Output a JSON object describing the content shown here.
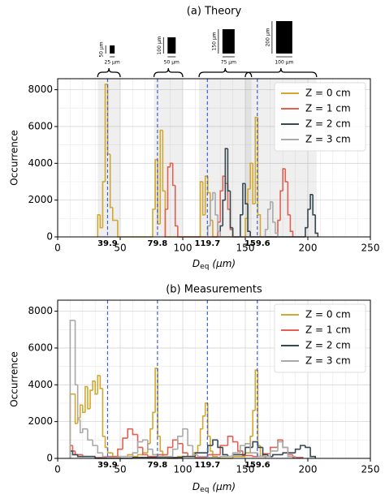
{
  "chart_data": [
    {
      "type": "histogram",
      "title": "(a) Theory",
      "xlabel": [
        "D",
        "eq",
        "(μm)"
      ],
      "ylabel": "Occurrence",
      "xlim": [
        0,
        250
      ],
      "ylim": [
        0,
        8600
      ],
      "xticks": [
        0,
        50,
        100,
        150,
        200,
        250
      ],
      "yticks": [
        0,
        2000,
        4000,
        6000,
        8000
      ],
      "xminorticks": [
        10,
        20,
        30,
        40,
        60,
        70,
        80,
        90,
        110,
        120,
        130,
        140,
        160,
        170,
        180,
        190,
        210,
        220,
        230,
        240
      ],
      "yminorticks": [
        1000,
        3000,
        5000,
        7000
      ],
      "grid": true,
      "legend": "upper right",
      "vlines": [
        39.9,
        79.8,
        119.7,
        159.6
      ],
      "vline_color": "#3d62d6",
      "spans": [
        [
          32,
          50
        ],
        [
          77,
          100
        ],
        [
          113,
          155
        ],
        [
          150,
          207
        ]
      ],
      "insets": [
        {
          "height_label": "50 µm",
          "width_label": "25 µm"
        },
        {
          "height_label": "100 µm",
          "width_label": "50 µm"
        },
        {
          "height_label": "150 µm",
          "width_label": "75 µm"
        },
        {
          "height_label": "200 µm",
          "width_label": "100 µm"
        }
      ],
      "series": [
        {
          "name": "Z = 0 cm",
          "color": "#d1a72e",
          "bins": [
            32,
            34,
            36,
            38,
            40,
            42,
            44,
            46,
            48,
            76,
            78,
            80,
            82,
            84,
            86,
            114,
            116,
            118,
            120,
            122,
            124,
            150,
            152,
            154,
            156,
            158,
            160,
            162
          ],
          "values": [
            1200,
            500,
            3000,
            8300,
            4500,
            1600,
            900,
            900,
            0,
            1500,
            4200,
            700,
            5800,
            2500,
            0,
            3000,
            1200,
            3300,
            2400,
            900,
            0,
            1000,
            2600,
            4000,
            1800,
            6500,
            1200
          ]
        },
        {
          "name": "Z = 1 cm",
          "color": "#e06152",
          "bins": [
            86,
            88,
            90,
            92,
            94,
            96,
            128,
            130,
            132,
            134,
            136,
            138,
            140,
            176,
            178,
            180,
            182,
            184,
            186,
            188
          ],
          "values": [
            1500,
            3800,
            4000,
            2800,
            600,
            0,
            800,
            2500,
            3300,
            2900,
            1500,
            400,
            0,
            900,
            2500,
            3700,
            3000,
            1200,
            300
          ]
        },
        {
          "name": "Z = 2 cm",
          "color": "#37474f",
          "bins": [
            130,
            132,
            134,
            136,
            138,
            140,
            146,
            148,
            150,
            152,
            154,
            198,
            200,
            202,
            204,
            206,
            208
          ],
          "values": [
            600,
            2000,
            4800,
            2500,
            500,
            0,
            1200,
            2900,
            1800,
            300,
            0,
            500,
            1500,
            2300,
            1200,
            200
          ]
        },
        {
          "name": "Z = 3 cm",
          "color": "#a9a9a9",
          "bins": [
            120,
            122,
            124,
            126,
            128,
            130,
            166,
            168,
            170,
            172,
            174,
            176
          ],
          "values": [
            600,
            2000,
            2400,
            1200,
            300,
            0,
            400,
            1500,
            1900,
            800,
            200
          ]
        }
      ]
    },
    {
      "type": "histogram",
      "title": "(b) Measurements",
      "xlabel": [
        "D",
        "eq",
        "(μm)"
      ],
      "ylabel": "Occurrence",
      "xlim": [
        0,
        250
      ],
      "ylim": [
        0,
        8600
      ],
      "xticks": [
        0,
        50,
        100,
        150,
        200,
        250
      ],
      "yticks": [
        0,
        2000,
        4000,
        6000,
        8000
      ],
      "xminorticks": [
        10,
        20,
        30,
        40,
        60,
        70,
        80,
        90,
        110,
        120,
        130,
        140,
        160,
        170,
        180,
        190,
        210,
        220,
        230,
        240
      ],
      "yminorticks": [
        1000,
        3000,
        5000,
        7000
      ],
      "grid": true,
      "legend": "upper right",
      "vlines": [
        39.9,
        79.8,
        119.7,
        159.6
      ],
      "vline_color": "#3d62d6",
      "series": [
        {
          "name": "Z = 0 cm",
          "color": "#d1a72e",
          "bins": [
            10,
            12,
            14,
            16,
            18,
            20,
            22,
            24,
            26,
            28,
            30,
            32,
            34,
            36,
            38,
            40,
            44,
            48,
            52,
            56,
            60,
            64,
            68,
            72,
            74,
            76,
            78,
            80,
            82,
            84,
            88,
            92,
            96,
            100,
            104,
            108,
            112,
            114,
            116,
            118,
            120,
            122,
            124,
            128,
            140,
            150,
            154,
            156,
            158,
            160,
            162,
            166
          ],
          "values": [
            3500,
            3500,
            1900,
            2200,
            2900,
            2500,
            3900,
            2700,
            3700,
            4200,
            3500,
            4500,
            3800,
            1200,
            600,
            300,
            100,
            100,
            100,
            200,
            100,
            200,
            300,
            800,
            1600,
            2500,
            4900,
            1200,
            400,
            100,
            0,
            0,
            100,
            100,
            100,
            300,
            700,
            1600,
            2300,
            3000,
            1200,
            400,
            100,
            0,
            100,
            300,
            1200,
            2600,
            4800,
            700,
            100
          ]
        },
        {
          "name": "Z = 1 cm",
          "color": "#e06152",
          "bins": [
            10,
            12,
            14,
            20,
            30,
            40,
            48,
            52,
            56,
            60,
            64,
            68,
            72,
            80,
            88,
            92,
            96,
            100,
            104,
            110,
            120,
            130,
            136,
            140,
            144,
            148,
            156,
            164,
            170,
            176,
            180,
            184,
            188,
            196
          ],
          "values": [
            700,
            400,
            200,
            100,
            50,
            100,
            500,
            1100,
            1600,
            1300,
            600,
            200,
            100,
            200,
            600,
            1000,
            800,
            300,
            100,
            50,
            200,
            700,
            1200,
            900,
            400,
            150,
            100,
            250,
            600,
            1000,
            600,
            200,
            50
          ]
        },
        {
          "name": "Z = 2 cm",
          "color": "#37474f",
          "bins": [
            10,
            12,
            16,
            30,
            60,
            100,
            110,
            120,
            124,
            128,
            132,
            136,
            140,
            150,
            156,
            160,
            164,
            168,
            172,
            180,
            190,
            194,
            198,
            202,
            206
          ],
          "values": [
            400,
            200,
            100,
            0,
            50,
            100,
            300,
            700,
            1000,
            600,
            200,
            100,
            200,
            600,
            900,
            600,
            200,
            100,
            200,
            300,
            500,
            700,
            600,
            100
          ]
        },
        {
          "name": "Z = 3 cm",
          "color": "#a9a9a9",
          "bins": [
            10,
            14,
            16,
            18,
            20,
            24,
            28,
            32,
            36,
            40,
            50,
            60,
            64,
            68,
            72,
            76,
            80,
            92,
            96,
            100,
            104,
            108,
            112,
            120,
            130,
            140,
            146,
            150,
            154,
            160,
            170,
            176,
            180,
            184,
            190
          ],
          "values": [
            7500,
            4000,
            2100,
            1400,
            1600,
            1000,
            700,
            300,
            100,
            50,
            100,
            300,
            900,
            1000,
            500,
            200,
            100,
            500,
            1200,
            1600,
            700,
            200,
            100,
            50,
            100,
            300,
            700,
            800,
            300,
            100,
            400,
            900,
            600,
            100
          ]
        }
      ]
    }
  ]
}
